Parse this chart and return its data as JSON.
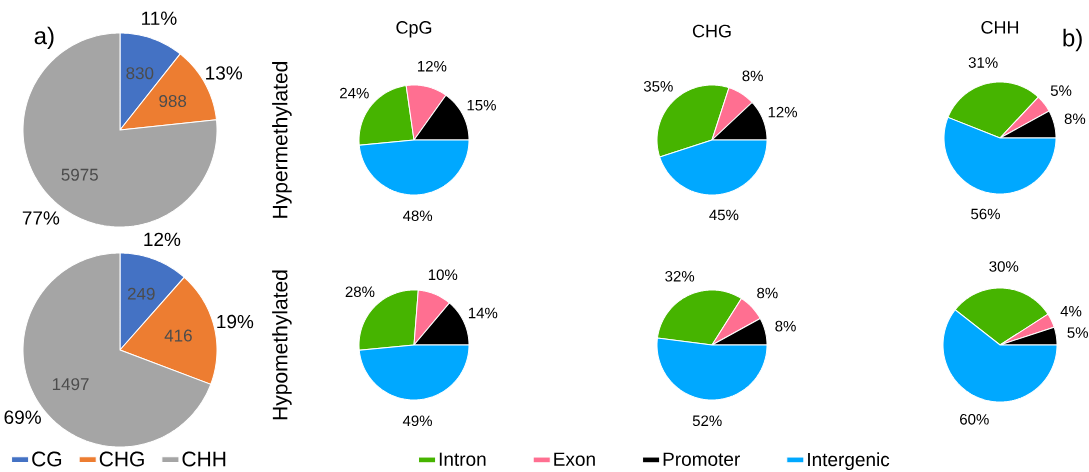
{
  "chart_data": [
    {
      "type": "pie",
      "categories": [
        null,
        null,
        null
      ],
      "values": [
        830,
        988,
        5975
      ],
      "colors": [
        "#4472c4",
        "#ed7d31",
        "#a5a5a5"
      ],
      "data_labels": true,
      "annotations": [
        "11%",
        "13%",
        "77%",
        "a)"
      ]
    },
    {
      "type": "pie",
      "categories": [
        "CG",
        "CHG",
        "CHH"
      ],
      "values": [
        249,
        416,
        1497
      ],
      "colors": [
        "#4472c4",
        "#ed7d31",
        "#a5a5a5"
      ],
      "data_labels": true,
      "annotations": [
        "12%",
        "19%",
        "69%"
      ],
      "legend": "bottom"
    },
    {
      "type": "pie",
      "title": "CpG",
      "ylabel": "Hypermethylated",
      "categories": [
        null,
        null,
        null,
        null
      ],
      "values": [
        24,
        12,
        15,
        48
      ],
      "colors": [
        "#46b400",
        "#ff6f91",
        "#000000",
        "#00a8ff"
      ],
      "value_labels": [
        "24%",
        "12%",
        "15%",
        "48%"
      ]
    },
    {
      "type": "pie",
      "title": "CHG",
      "categories": [
        null,
        null,
        null,
        null
      ],
      "values": [
        35,
        8,
        12,
        45
      ],
      "colors": [
        "#46b400",
        "#ff6f91",
        "#000000",
        "#00a8ff"
      ],
      "value_labels": [
        "35%",
        "8%",
        "12%",
        "45%"
      ]
    },
    {
      "type": "pie",
      "title": "CHH",
      "categories": [
        null,
        null,
        null,
        null
      ],
      "values": [
        31,
        5,
        8,
        56
      ],
      "colors": [
        "#46b400",
        "#ff6f91",
        "#000000",
        "#00a8ff"
      ],
      "value_labels": [
        "31%",
        "5%",
        "8%",
        "56%"
      ],
      "annotations": [
        "b)"
      ]
    },
    {
      "type": "pie",
      "ylabel": "Hypomethylated",
      "categories": [
        "Intron",
        "Exon",
        "Promoter",
        "Intergenic"
      ],
      "values": [
        28,
        10,
        14,
        49
      ],
      "colors": [
        "#46b400",
        "#ff6f91",
        "#000000",
        "#00a8ff"
      ],
      "value_labels": [
        "28%",
        "10%",
        "14%",
        "49%"
      ],
      "legend": "bottom"
    },
    {
      "type": "pie",
      "categories": [
        null,
        null,
        null,
        null
      ],
      "values": [
        32,
        8,
        8,
        52
      ],
      "colors": [
        "#46b400",
        "#ff6f91",
        "#000000",
        "#00a8ff"
      ],
      "value_labels": [
        "32%",
        "8%",
        "8%",
        "52%"
      ]
    },
    {
      "type": "pie",
      "categories": [
        null,
        null,
        null,
        null
      ],
      "values": [
        30,
        4,
        5,
        60
      ],
      "colors": [
        "#46b400",
        "#ff6f91",
        "#000000",
        "#00a8ff"
      ],
      "value_labels": [
        "30%",
        "4%",
        "5%",
        "60%"
      ]
    }
  ]
}
